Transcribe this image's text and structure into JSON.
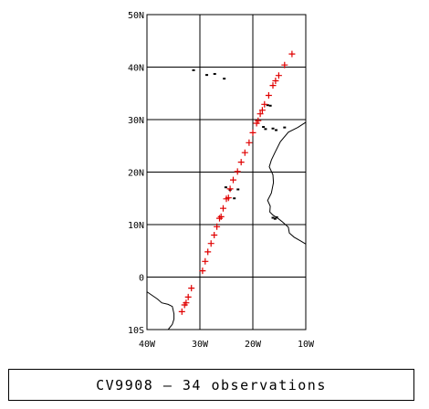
{
  "caption": {
    "cruise_id": "CV9908",
    "separator": "–",
    "observations_label": "34 observations"
  },
  "map": {
    "lon_range": [
      -40,
      -10
    ],
    "lat_range": [
      -10,
      50
    ],
    "lon_ticks": [
      {
        "value": -40,
        "label": "40W"
      },
      {
        "value": -30,
        "label": "30W"
      },
      {
        "value": -20,
        "label": "20W"
      },
      {
        "value": -10,
        "label": "10W"
      }
    ],
    "lat_ticks": [
      {
        "value": -10,
        "label": "10S"
      },
      {
        "value": 0,
        "label": "0"
      },
      {
        "value": 10,
        "label": "10N"
      },
      {
        "value": 20,
        "label": "20N"
      },
      {
        "value": 30,
        "label": "30N"
      },
      {
        "value": 40,
        "label": "40N"
      },
      {
        "value": 50,
        "label": "50N"
      }
    ],
    "marker_color": "#e00000",
    "line_color": "#000000",
    "observations": [
      {
        "lon": -33.4,
        "lat": -6.6
      },
      {
        "lon": -32.9,
        "lat": -5.3
      },
      {
        "lon": -32.6,
        "lat": -4.9
      },
      {
        "lon": -32.2,
        "lat": -3.8
      },
      {
        "lon": -31.6,
        "lat": -2.1
      },
      {
        "lon": -29.5,
        "lat": 1.2
      },
      {
        "lon": -29.0,
        "lat": 3.0
      },
      {
        "lon": -28.5,
        "lat": 4.8
      },
      {
        "lon": -27.9,
        "lat": 6.4
      },
      {
        "lon": -27.3,
        "lat": 8.0
      },
      {
        "lon": -26.8,
        "lat": 9.6
      },
      {
        "lon": -26.3,
        "lat": 11.2
      },
      {
        "lon": -25.6,
        "lat": 13.1
      },
      {
        "lon": -25.0,
        "lat": 14.9
      },
      {
        "lon": -24.3,
        "lat": 16.8
      },
      {
        "lon": -23.7,
        "lat": 18.5
      },
      {
        "lon": -22.9,
        "lat": 20.1
      },
      {
        "lon": -22.2,
        "lat": 21.9
      },
      {
        "lon": -21.5,
        "lat": 23.7
      },
      {
        "lon": -20.7,
        "lat": 25.6
      },
      {
        "lon": -20.0,
        "lat": 27.5
      },
      {
        "lon": -19.3,
        "lat": 29.3
      },
      {
        "lon": -18.6,
        "lat": 31.1
      },
      {
        "lon": -17.8,
        "lat": 32.9
      },
      {
        "lon": -17.0,
        "lat": 34.6
      },
      {
        "lon": -16.2,
        "lat": 36.5
      },
      {
        "lon": -15.1,
        "lat": 38.4
      },
      {
        "lon": -14.0,
        "lat": 40.4
      },
      {
        "lon": -12.6,
        "lat": 42.5
      },
      {
        "lon": -26.0,
        "lat": 11.5
      },
      {
        "lon": -24.6,
        "lat": 15.1
      },
      {
        "lon": -19.0,
        "lat": 29.8
      },
      {
        "lon": -18.2,
        "lat": 31.8
      },
      {
        "lon": -15.7,
        "lat": 37.4
      }
    ],
    "coastlines": {
      "africa": [
        [
          -10.0,
          6.3
        ],
        [
          -11.0,
          6.9
        ],
        [
          -12.2,
          7.6
        ],
        [
          -13.1,
          8.4
        ],
        [
          -13.3,
          9.5
        ],
        [
          -14.4,
          10.5
        ],
        [
          -15.0,
          11.0
        ],
        [
          -16.2,
          11.8
        ],
        [
          -16.8,
          12.4
        ],
        [
          -16.7,
          13.5
        ],
        [
          -17.2,
          14.6
        ],
        [
          -16.5,
          16.0
        ],
        [
          -16.1,
          18.0
        ],
        [
          -16.2,
          19.5
        ],
        [
          -16.9,
          21.0
        ],
        [
          -16.5,
          22.3
        ],
        [
          -15.8,
          23.8
        ],
        [
          -14.8,
          25.8
        ],
        [
          -13.3,
          27.6
        ],
        [
          -11.5,
          28.5
        ],
        [
          -10.0,
          29.5
        ]
      ],
      "south_america": [
        [
          -40.0,
          -2.8
        ],
        [
          -39.0,
          -3.5
        ],
        [
          -38.0,
          -4.2
        ],
        [
          -37.2,
          -4.9
        ],
        [
          -36.0,
          -5.2
        ],
        [
          -35.2,
          -5.6
        ],
        [
          -34.9,
          -7.0
        ],
        [
          -34.9,
          -8.0
        ],
        [
          -35.2,
          -9.0
        ],
        [
          -36.0,
          -10.0
        ]
      ],
      "canaries": [
        [
          -18.0,
          28.6
        ],
        [
          -17.6,
          28.2
        ],
        [
          -16.2,
          28.3
        ],
        [
          -15.6,
          28.0
        ],
        [
          -14.0,
          28.5
        ]
      ],
      "madeira": [
        [
          -17.2,
          32.75
        ],
        [
          -16.7,
          32.65
        ]
      ],
      "azores": [
        [
          -31.2,
          39.4
        ],
        [
          -28.7,
          38.5
        ],
        [
          -27.2,
          38.7
        ],
        [
          -25.4,
          37.8
        ]
      ],
      "cape_verde": [
        [
          -25.1,
          17.1
        ],
        [
          -24.3,
          16.6
        ],
        [
          -23.5,
          15.0
        ],
        [
          -22.8,
          16.7
        ]
      ],
      "bijagos": [
        [
          -16.2,
          11.3
        ],
        [
          -15.8,
          11.1
        ],
        [
          -15.5,
          11.4
        ]
      ]
    }
  }
}
